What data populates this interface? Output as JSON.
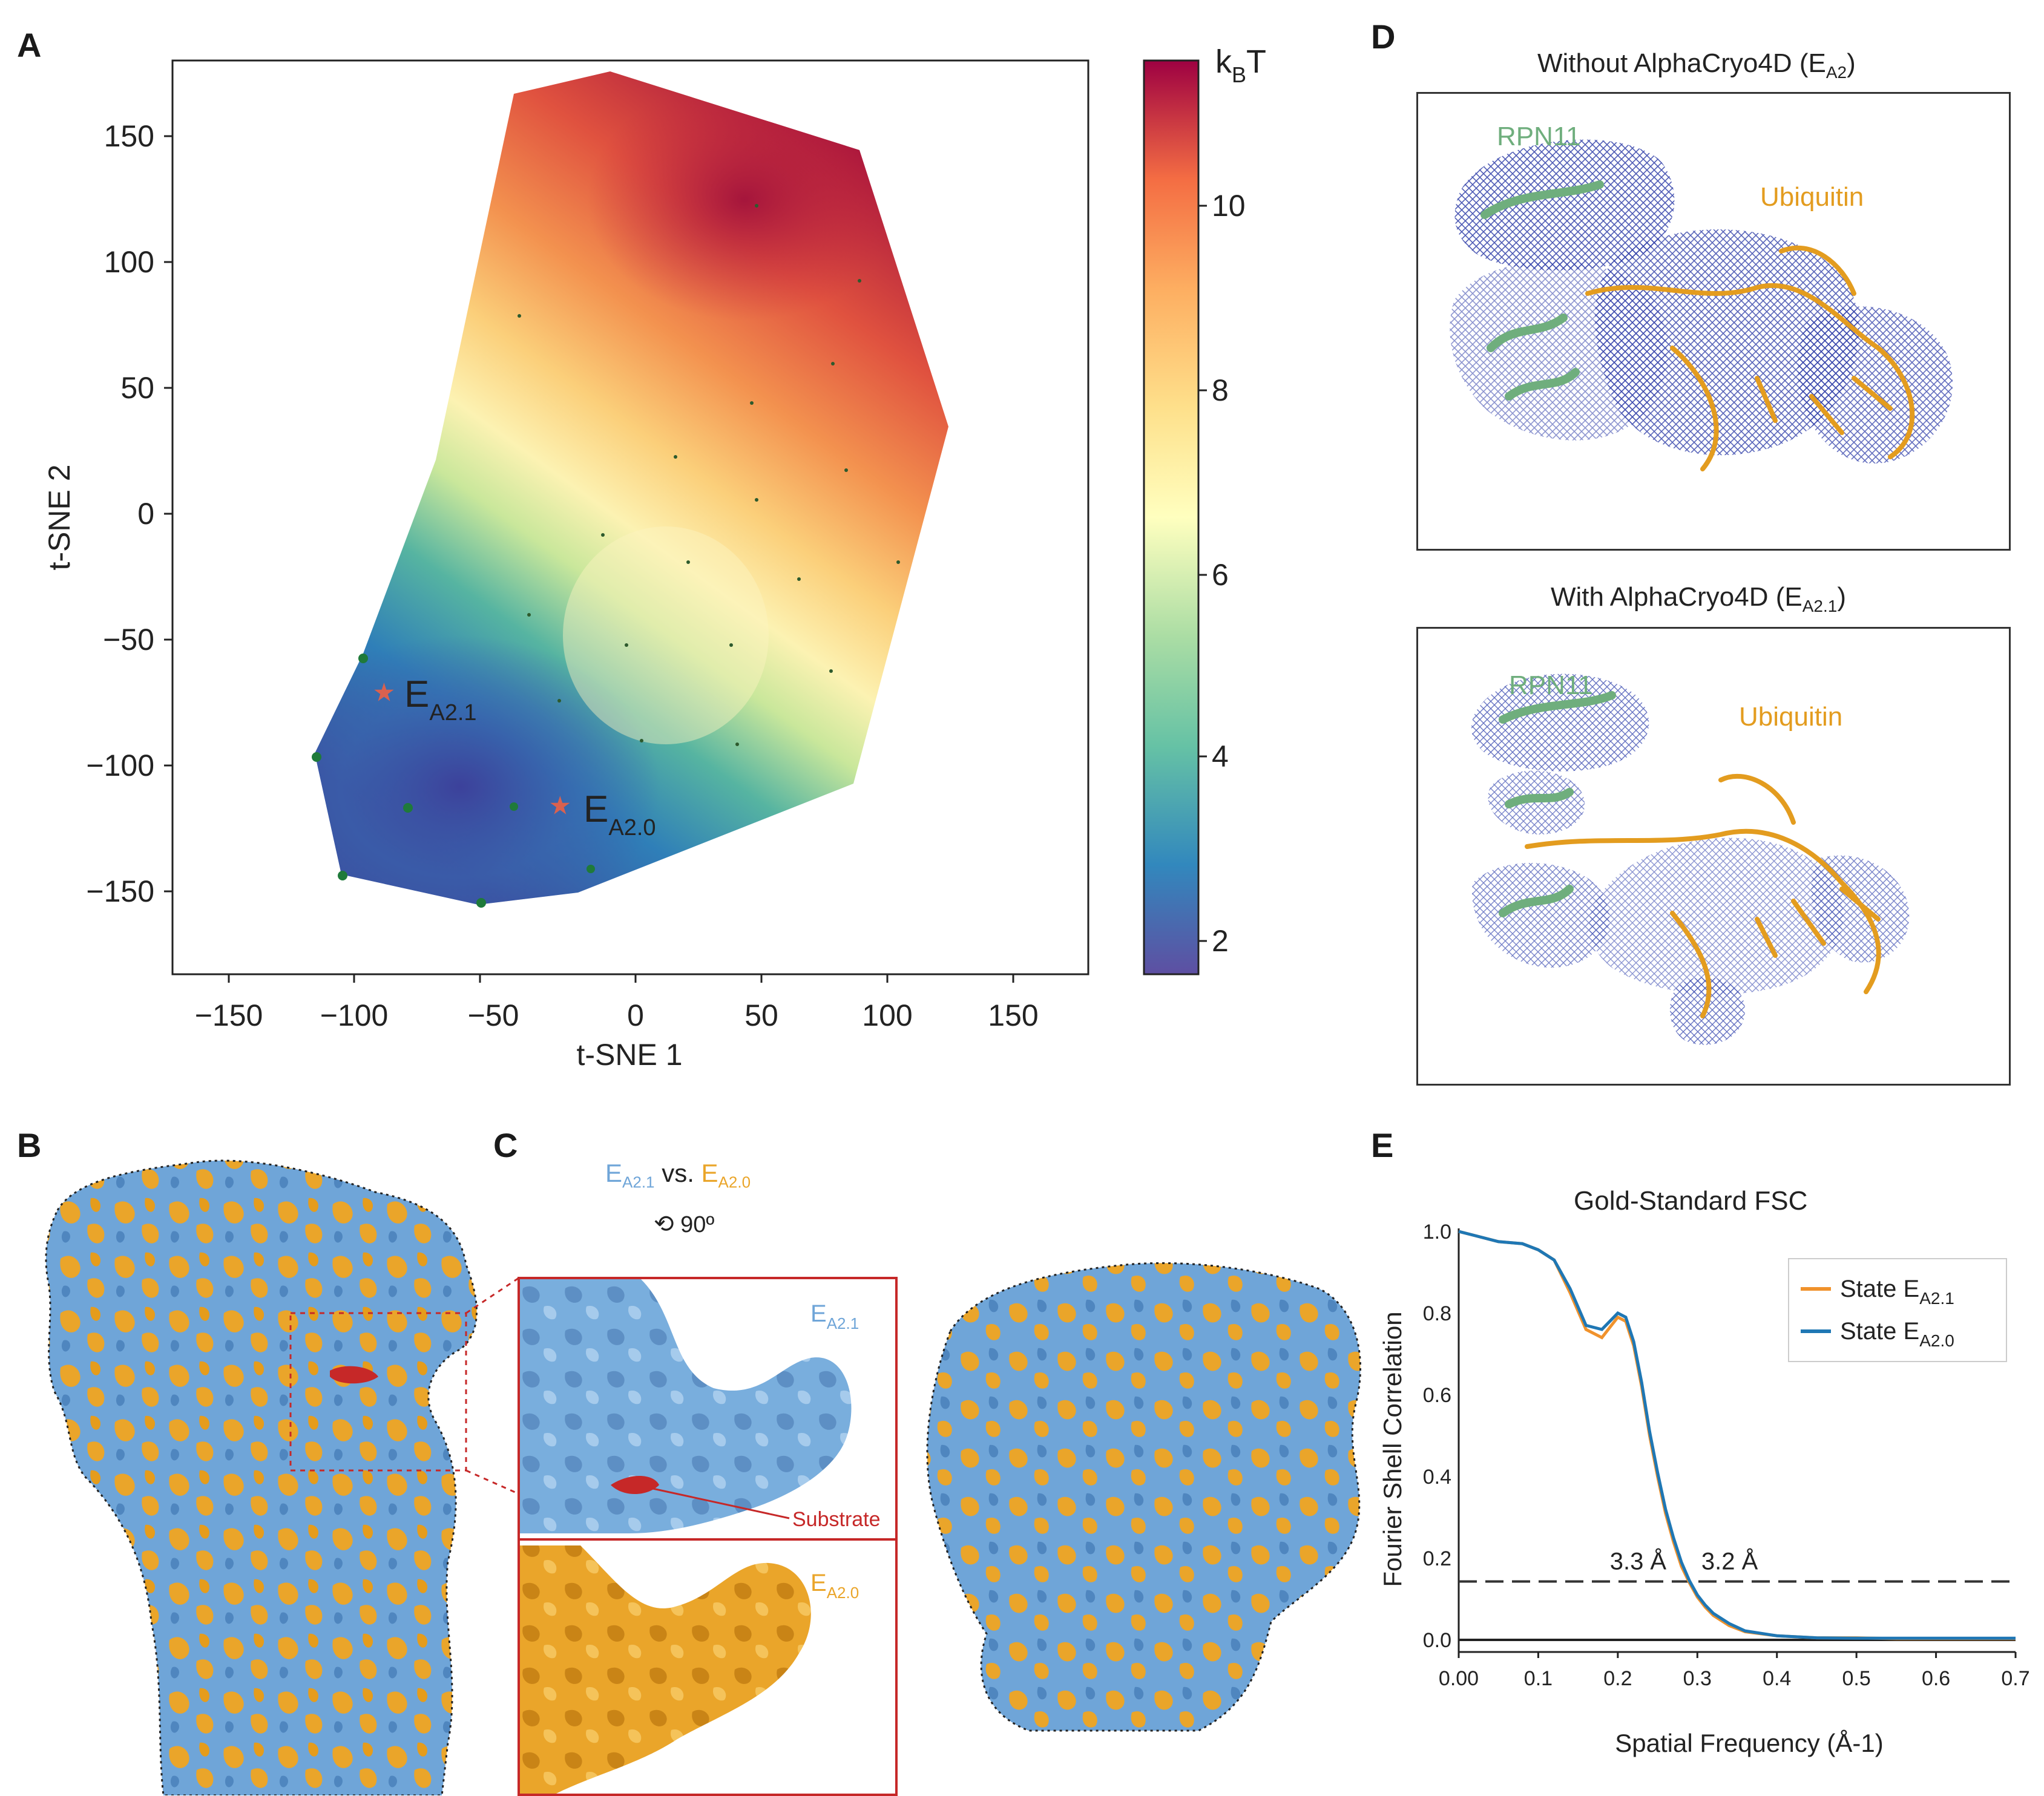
{
  "panels": {
    "A": "A",
    "B": "B",
    "C": "C",
    "D": "D",
    "E": "E"
  },
  "panelA": {
    "xlabel": "t-SNE 1",
    "ylabel": "t-SNE 2",
    "xticks": [
      "−150",
      "−100",
      "−50",
      "0",
      "50",
      "100",
      "150"
    ],
    "yticks": [
      "150",
      "100",
      "50",
      "0",
      "−50",
      "−100",
      "−150"
    ],
    "colorbar_label": "kBT",
    "colorbar_ticks": [
      "10",
      "8",
      "6",
      "4",
      "2"
    ],
    "marker1": {
      "main": "E",
      "sub": "A2.1",
      "x": -100,
      "y": -71
    },
    "marker2": {
      "main": "E",
      "sub": "A2.0",
      "x": -30,
      "y": -116
    },
    "energy_low_color": "#3b4fa0",
    "energy_high_color": "#a8143c"
  },
  "panelC": {
    "legend_a_main": "E",
    "legend_a_sub": "A2.1",
    "legend_vs": "vs.",
    "legend_b_main": "E",
    "legend_b_sub": "A2.0",
    "rotation": "90º",
    "inset_top_label_main": "E",
    "inset_top_label_sub": "A2.1",
    "inset_bottom_label_main": "E",
    "inset_bottom_label_sub": "A2.0",
    "substrate_label": "Substrate",
    "color_blue": "#6fa5d8",
    "color_orange": "#eaa52a",
    "color_red": "#c62828"
  },
  "panelD": {
    "top_title_main": "Without AlphaCryo4D (E",
    "top_title_sub": "A2",
    "top_title_end": ")",
    "bottom_title_main": "With AlphaCryo4D (E",
    "bottom_title_sub": "A2.1",
    "bottom_title_end": ")",
    "rpn11": "RPN11",
    "ubiquitin": "Ubiquitin",
    "rpn11_color": "#6fae7d",
    "ubiquitin_color": "#e39c1f",
    "mesh_color": "#2f3ea8"
  },
  "chart_data": {
    "type": "line",
    "title": "Gold-Standard FSC",
    "xlabel": "Spatial Frequency (Å-1)",
    "ylabel": "Fourier Shell Correlation",
    "xlim": [
      0,
      0.7
    ],
    "ylim": [
      0,
      1.0
    ],
    "xticks": [
      "0.00",
      "0.1",
      "0.2",
      "0.3",
      "0.4",
      "0.5",
      "0.6",
      "0.7"
    ],
    "yticks": [
      "1.0",
      "0.8",
      "0.6",
      "0.4",
      "0.2",
      "0.0"
    ],
    "threshold": 0.143,
    "annotation_left": "3.3 Å",
    "annotation_right": "3.2 Å",
    "legend": "top-right",
    "series": [
      {
        "name": "State E",
        "sub": "A2.1",
        "color": "#f0922c",
        "x": [
          0.0,
          0.02,
          0.05,
          0.08,
          0.1,
          0.12,
          0.14,
          0.16,
          0.18,
          0.2,
          0.21,
          0.22,
          0.23,
          0.24,
          0.25,
          0.26,
          0.27,
          0.28,
          0.29,
          0.3,
          0.31,
          0.32,
          0.34,
          0.36,
          0.4,
          0.45,
          0.5,
          0.55,
          0.6,
          0.65,
          0.7
        ],
        "y": [
          1.0,
          0.99,
          0.975,
          0.97,
          0.955,
          0.93,
          0.85,
          0.76,
          0.74,
          0.79,
          0.78,
          0.72,
          0.62,
          0.5,
          0.4,
          0.31,
          0.24,
          0.18,
          0.14,
          0.105,
          0.08,
          0.06,
          0.035,
          0.02,
          0.01,
          0.005,
          0.005,
          0.003,
          0.003,
          0.003,
          0.003
        ]
      },
      {
        "name": "State E",
        "sub": "A2.0",
        "color": "#1f77b4",
        "x": [
          0.0,
          0.02,
          0.05,
          0.08,
          0.1,
          0.12,
          0.14,
          0.16,
          0.18,
          0.2,
          0.21,
          0.22,
          0.23,
          0.24,
          0.25,
          0.26,
          0.27,
          0.28,
          0.29,
          0.3,
          0.31,
          0.32,
          0.34,
          0.36,
          0.4,
          0.45,
          0.5,
          0.55,
          0.6,
          0.65,
          0.7
        ],
        "y": [
          1.0,
          0.99,
          0.975,
          0.97,
          0.955,
          0.93,
          0.86,
          0.77,
          0.76,
          0.8,
          0.79,
          0.73,
          0.63,
          0.51,
          0.41,
          0.32,
          0.25,
          0.19,
          0.145,
          0.11,
          0.085,
          0.065,
          0.04,
          0.022,
          0.01,
          0.005,
          0.004,
          0.004,
          0.004,
          0.004,
          0.004
        ]
      }
    ]
  }
}
